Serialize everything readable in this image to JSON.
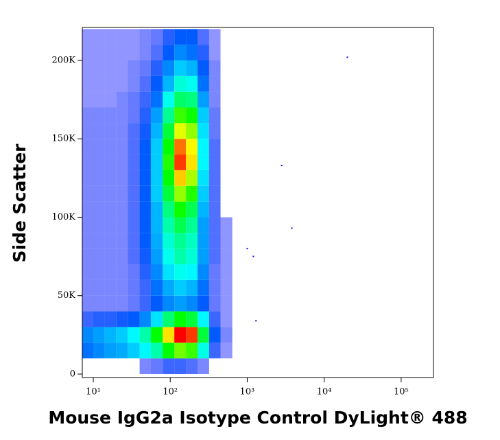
{
  "chart_data": {
    "type": "density2d",
    "x_label": "Mouse IgG2a Isotype Control DyLight® 488",
    "y_label": "Side Scatter",
    "xscale": "log",
    "xlim": [
      7.2,
      263000
    ],
    "ylim": [
      -2200,
      221000
    ],
    "xticks": [
      {
        "value": 10,
        "label": "10¹"
      },
      {
        "value": 100,
        "label": "10²"
      },
      {
        "value": 1000,
        "label": "10³"
      },
      {
        "value": 10000,
        "label": "10⁴"
      },
      {
        "value": 100000,
        "label": "10⁵"
      }
    ],
    "yticks": [
      0,
      {
        "value": 50000,
        "label": "50K"
      },
      {
        "value": 100000,
        "label": "100K"
      },
      {
        "value": 150000,
        "label": "150K"
      },
      {
        "value": 200000,
        "label": "200K"
      }
    ],
    "colormap": [
      "#0000ff",
      "#00ffff",
      "#00ff00",
      "#ffff00",
      "#ff0000"
    ],
    "xbins": [
      7.2,
      10,
      14,
      20,
      28,
      40,
      56,
      80,
      113,
      160,
      226,
      320,
      450,
      640,
      900,
      1270
    ],
    "ybins": [
      0,
      10000,
      20000,
      30000,
      40000,
      50000,
      60000,
      70000,
      80000,
      90000,
      100000,
      110000,
      120000,
      130000,
      140000,
      150000,
      160000,
      170000,
      180000,
      190000,
      200000,
      210000,
      220000
    ],
    "counts": [
      [
        0,
        0,
        0,
        0,
        0,
        2,
        3,
        5,
        5,
        4,
        2,
        0,
        0,
        0,
        0
      ],
      [
        10,
        12,
        14,
        15,
        18,
        22,
        30,
        45,
        55,
        50,
        25,
        5,
        1,
        0,
        0
      ],
      [
        12,
        14,
        16,
        18,
        22,
        30,
        45,
        70,
        90,
        85,
        40,
        8,
        2,
        0,
        0
      ],
      [
        5,
        6,
        6,
        7,
        8,
        12,
        20,
        35,
        45,
        40,
        22,
        5,
        1,
        0,
        0
      ],
      [
        2,
        2,
        2,
        2,
        3,
        5,
        8,
        12,
        14,
        12,
        8,
        3,
        1,
        0,
        0
      ],
      [
        2,
        2,
        2,
        2,
        3,
        5,
        10,
        15,
        18,
        16,
        10,
        3,
        1,
        0,
        0
      ],
      [
        2,
        2,
        2,
        2,
        3,
        6,
        12,
        20,
        24,
        22,
        12,
        3,
        1,
        0,
        0
      ],
      [
        2,
        2,
        2,
        2,
        4,
        7,
        14,
        24,
        30,
        26,
        14,
        4,
        1,
        0,
        0
      ],
      [
        2,
        2,
        2,
        2,
        4,
        8,
        15,
        26,
        32,
        28,
        14,
        4,
        1,
        0,
        0
      ],
      [
        2,
        2,
        2,
        2,
        4,
        8,
        16,
        30,
        38,
        32,
        14,
        4,
        1,
        0,
        0
      ],
      [
        2,
        2,
        2,
        2,
        4,
        8,
        16,
        34,
        46,
        38,
        16,
        4,
        0,
        0,
        0
      ],
      [
        2,
        2,
        2,
        2,
        4,
        8,
        18,
        40,
        58,
        48,
        18,
        4,
        0,
        0,
        0
      ],
      [
        2,
        2,
        2,
        2,
        4,
        8,
        18,
        45,
        72,
        60,
        20,
        4,
        0,
        0,
        0
      ],
      [
        2,
        2,
        2,
        2,
        4,
        8,
        18,
        48,
        85,
        70,
        22,
        4,
        0,
        0,
        0
      ],
      [
        2,
        2,
        2,
        2,
        4,
        8,
        18,
        45,
        80,
        68,
        22,
        4,
        0,
        0,
        0
      ],
      [
        2,
        2,
        2,
        2,
        4,
        7,
        16,
        40,
        65,
        58,
        20,
        3,
        0,
        0,
        0
      ],
      [
        2,
        2,
        2,
        2,
        3,
        6,
        14,
        32,
        50,
        46,
        18,
        3,
        0,
        0,
        0
      ],
      [
        1,
        1,
        1,
        2,
        3,
        5,
        10,
        24,
        36,
        34,
        14,
        2,
        0,
        0,
        0
      ],
      [
        1,
        1,
        1,
        1,
        2,
        4,
        8,
        16,
        26,
        24,
        10,
        2,
        0,
        0,
        0
      ],
      [
        1,
        1,
        1,
        1,
        2,
        3,
        6,
        12,
        18,
        16,
        8,
        2,
        0,
        0,
        0
      ],
      [
        1,
        1,
        1,
        1,
        1,
        2,
        4,
        8,
        12,
        10,
        6,
        1,
        0,
        0,
        0
      ],
      [
        1,
        1,
        1,
        1,
        1,
        2,
        3,
        6,
        8,
        8,
        4,
        1,
        0,
        0,
        0
      ]
    ],
    "points": {
      "x": [
        20000,
        2800,
        3800,
        1000,
        1200,
        1300
      ],
      "y": [
        202000,
        133000,
        93000,
        80000,
        75000,
        34000
      ]
    }
  }
}
